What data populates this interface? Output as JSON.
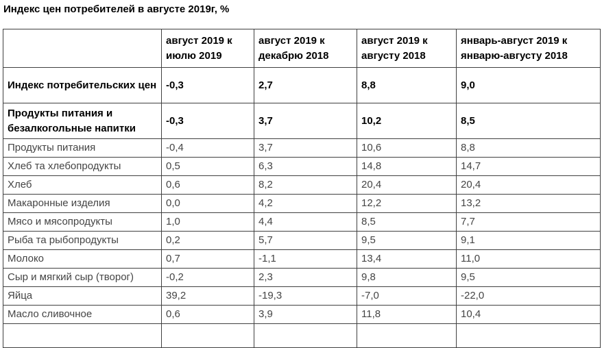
{
  "page": {
    "title": "Индекс цен потребителей в августе 2019г, %"
  },
  "table": {
    "headers": [
      "",
      "август 2019 к июлю 2019",
      "август 2019 к декабрю 2018",
      "август 2019 к августу 2018",
      "январь-август 2019 к январю-августу 2018"
    ],
    "rows": [
      {
        "label": "Индекс потребительских цен",
        "bold": true,
        "values": [
          "-0,3",
          "2,7",
          "8,8",
          "9,0"
        ]
      },
      {
        "label": "Продукты питания и безалкогольные напитки",
        "bold": true,
        "values": [
          "-0,3",
          "3,7",
          "10,2",
          "8,5"
        ]
      },
      {
        "label": "Продукты питания",
        "bold": false,
        "values": [
          "-0,4",
          "3,7",
          "10,6",
          "8,8"
        ]
      },
      {
        "label": "Хлеб та хлебопродукты",
        "bold": false,
        "values": [
          "0,5",
          "6,3",
          "14,8",
          "14,7"
        ]
      },
      {
        "label": "Хлеб",
        "bold": false,
        "values": [
          "0,6",
          "8,2",
          "20,4",
          "20,4"
        ]
      },
      {
        "label": "Макаронные изделия",
        "bold": false,
        "values": [
          "0,0",
          "4,2",
          "12,2",
          "13,2"
        ]
      },
      {
        "label": "Мясо и мясопродукты",
        "bold": false,
        "values": [
          "1,0",
          "4,4",
          "8,5",
          "7,7"
        ]
      },
      {
        "label": "Рыба та рыбопродукты",
        "bold": false,
        "values": [
          "0,2",
          "5,7",
          "9,5",
          "9,1"
        ]
      },
      {
        "label": "Молоко",
        "bold": false,
        "values": [
          "0,7",
          "-1,1",
          "13,4",
          "11,0"
        ]
      },
      {
        "label": "Сыр и мягкий сыр (творог)",
        "bold": false,
        "values": [
          "-0,2",
          "2,3",
          "9,8",
          "9,5"
        ]
      },
      {
        "label": "Яйца",
        "bold": false,
        "values": [
          "39,2",
          "-19,3",
          "-7,0",
          "-22,0"
        ]
      },
      {
        "label": "Масло сливочное",
        "bold": false,
        "values": [
          "0,6",
          "3,9",
          "11,8",
          "10,4"
        ]
      }
    ]
  },
  "chart_data": {
    "type": "table",
    "title": "Индекс цен потребителей в августе 2019г, %",
    "unit": "%",
    "columns": [
      "август 2019 к июлю 2019",
      "август 2019 к декабрю 2018",
      "август 2019 к августу 2018",
      "январь-август 2019 к январю-августу 2018"
    ],
    "rows": [
      {
        "category": "Индекс потребительских цен",
        "values": [
          -0.3,
          2.7,
          8.8,
          9.0
        ]
      },
      {
        "category": "Продукты питания и безалкогольные напитки",
        "values": [
          -0.3,
          3.7,
          10.2,
          8.5
        ]
      },
      {
        "category": "Продукты питания",
        "values": [
          -0.4,
          3.7,
          10.6,
          8.8
        ]
      },
      {
        "category": "Хлеб та хлебопродукты",
        "values": [
          0.5,
          6.3,
          14.8,
          14.7
        ]
      },
      {
        "category": "Хлеб",
        "values": [
          0.6,
          8.2,
          20.4,
          20.4
        ]
      },
      {
        "category": "Макаронные изделия",
        "values": [
          0.0,
          4.2,
          12.2,
          13.2
        ]
      },
      {
        "category": "Мясо и мясопродукты",
        "values": [
          1.0,
          4.4,
          8.5,
          7.7
        ]
      },
      {
        "category": "Рыба та рыбопродукты",
        "values": [
          0.2,
          5.7,
          9.5,
          9.1
        ]
      },
      {
        "category": "Молоко",
        "values": [
          0.7,
          -1.1,
          13.4,
          11.0
        ]
      },
      {
        "category": "Сыр и мягкий сыр (творог)",
        "values": [
          -0.2,
          2.3,
          9.8,
          9.5
        ]
      },
      {
        "category": "Яйца",
        "values": [
          39.2,
          -19.3,
          -7.0,
          -22.0
        ]
      },
      {
        "category": "Масло сливочное",
        "values": [
          0.6,
          3.9,
          11.8,
          10.4
        ]
      }
    ]
  }
}
